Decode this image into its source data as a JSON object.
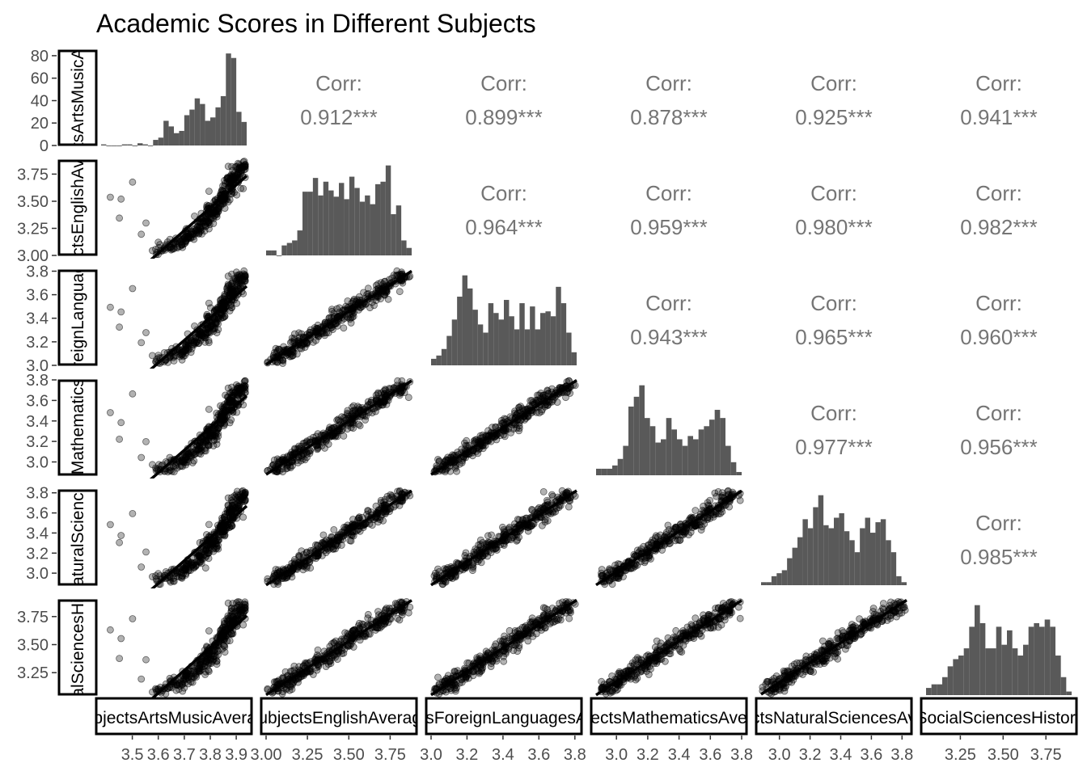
{
  "chart_data": {
    "type": "scatter-matrix",
    "title": "Academic Scores in Different Subjects",
    "variables": [
      {
        "label": "SubjectsArtsMusicAverage",
        "x_ticks": [
          3.5,
          3.6,
          3.7,
          3.8,
          3.9
        ],
        "x_tick_labels": [
          "3.5",
          "3.6",
          "3.7",
          "3.8",
          "3.9"
        ],
        "range": [
          3.38,
          3.94
        ],
        "y_ticks": [],
        "y_tick_labels": []
      },
      {
        "label": "SubjectsEnglishAverage",
        "x_ticks": [
          3.0,
          3.25,
          3.5,
          3.75
        ],
        "x_tick_labels": [
          "3.00",
          "3.25",
          "3.50",
          "3.75"
        ],
        "range": [
          3.0,
          3.88
        ],
        "y_ticks": [
          3.0,
          3.25,
          3.5,
          3.75
        ],
        "y_tick_labels": [
          "3.00",
          "3.25",
          "3.50",
          "3.75"
        ]
      },
      {
        "label": "SubjectsForeignLanguagesAverage",
        "x_ticks": [
          3.0,
          3.2,
          3.4,
          3.6,
          3.8
        ],
        "x_tick_labels": [
          "3.0",
          "3.2",
          "3.4",
          "3.6",
          "3.8"
        ],
        "range": [
          3.0,
          3.81
        ],
        "y_ticks": [
          3.0,
          3.2,
          3.4,
          3.6,
          3.8
        ],
        "y_tick_labels": [
          "3.0",
          "3.2",
          "3.4",
          "3.6",
          "3.8"
        ]
      },
      {
        "label": "SubjectsMathematicsAverage",
        "x_ticks": [
          3.0,
          3.2,
          3.4,
          3.6,
          3.8
        ],
        "x_tick_labels": [
          "3.0",
          "3.2",
          "3.4",
          "3.6",
          "3.8"
        ],
        "range": [
          2.87,
          3.8
        ],
        "y_ticks": [
          3.0,
          3.2,
          3.4,
          3.6,
          3.8
        ],
        "y_tick_labels": [
          "3.0",
          "3.2",
          "3.4",
          "3.6",
          "3.8"
        ]
      },
      {
        "label": "SubjectsNaturalSciencesAverage",
        "x_ticks": [
          3.0,
          3.2,
          3.4,
          3.6,
          3.8
        ],
        "x_tick_labels": [
          "3.0",
          "3.2",
          "3.4",
          "3.6",
          "3.8"
        ],
        "range": [
          2.88,
          3.83
        ],
        "y_ticks": [
          3.0,
          3.2,
          3.4,
          3.6,
          3.8
        ],
        "y_tick_labels": [
          "3.0",
          "3.2",
          "3.4",
          "3.6",
          "3.8"
        ]
      },
      {
        "label": "SubjectsSocialSciencesHistoryAverage",
        "x_ticks": [
          3.25,
          3.5,
          3.75
        ],
        "x_tick_labels": [
          "3.25",
          "3.50",
          "3.75"
        ],
        "range": [
          3.05,
          3.9
        ],
        "y_ticks": [
          3.25,
          3.5,
          3.75
        ],
        "y_tick_labels": [
          "3.25",
          "3.50",
          "3.75"
        ]
      }
    ],
    "count_axis": {
      "ticks": [
        0,
        20,
        40,
        60,
        80
      ],
      "tick_labels": [
        "0",
        "20",
        "40",
        "60",
        "80"
      ],
      "range": [
        0,
        85
      ]
    },
    "correlations": [
      {
        "row": 0,
        "col": 1,
        "label": "Corr:",
        "value": "0.912***"
      },
      {
        "row": 0,
        "col": 2,
        "label": "Corr:",
        "value": "0.899***"
      },
      {
        "row": 0,
        "col": 3,
        "label": "Corr:",
        "value": "0.878***"
      },
      {
        "row": 0,
        "col": 4,
        "label": "Corr:",
        "value": "0.925***"
      },
      {
        "row": 0,
        "col": 5,
        "label": "Corr:",
        "value": "0.941***"
      },
      {
        "row": 1,
        "col": 2,
        "label": "Corr:",
        "value": "0.964***"
      },
      {
        "row": 1,
        "col": 3,
        "label": "Corr:",
        "value": "0.959***"
      },
      {
        "row": 1,
        "col": 4,
        "label": "Corr:",
        "value": "0.980***"
      },
      {
        "row": 1,
        "col": 5,
        "label": "Corr:",
        "value": "0.982***"
      },
      {
        "row": 2,
        "col": 3,
        "label": "Corr:",
        "value": "0.943***"
      },
      {
        "row": 2,
        "col": 4,
        "label": "Corr:",
        "value": "0.965***"
      },
      {
        "row": 2,
        "col": 5,
        "label": "Corr:",
        "value": "0.960***"
      },
      {
        "row": 3,
        "col": 4,
        "label": "Corr:",
        "value": "0.977***"
      },
      {
        "row": 3,
        "col": 5,
        "label": "Corr:",
        "value": "0.956***"
      },
      {
        "row": 4,
        "col": 5,
        "label": "Corr:",
        "value": "0.985***"
      }
    ],
    "histograms": [
      [
        1,
        0,
        0,
        0,
        1,
        1,
        0,
        2,
        1,
        0,
        5,
        7,
        22,
        17,
        11,
        13,
        27,
        32,
        42,
        37,
        22,
        25,
        34,
        44,
        82,
        78,
        30,
        21
      ],
      [
        4,
        4,
        0,
        8,
        10,
        12,
        20,
        51,
        51,
        62,
        48,
        59,
        52,
        47,
        58,
        45,
        63,
        54,
        43,
        48,
        41,
        57,
        59,
        72,
        33,
        40,
        12,
        6
      ],
      [
        4,
        6,
        10,
        18,
        28,
        42,
        55,
        47,
        34,
        25,
        20,
        38,
        32,
        28,
        40,
        30,
        22,
        38,
        22,
        36,
        22,
        32,
        33,
        30,
        48,
        38,
        20,
        8
      ],
      [
        4,
        4,
        4,
        6,
        10,
        18,
        42,
        48,
        55,
        35,
        30,
        20,
        22,
        35,
        28,
        22,
        18,
        24,
        22,
        28,
        30,
        34,
        40,
        35,
        18,
        8,
        2
      ],
      [
        2,
        2,
        6,
        8,
        10,
        18,
        25,
        32,
        44,
        38,
        52,
        60,
        40,
        38,
        45,
        48,
        36,
        30,
        22,
        38,
        45,
        35,
        42,
        44,
        30,
        22,
        6,
        2
      ],
      [
        4,
        6,
        6,
        10,
        16,
        20,
        22,
        26,
        38,
        50,
        40,
        26,
        26,
        38,
        28,
        36,
        26,
        22,
        28,
        38,
        40,
        38,
        42,
        38,
        22,
        10,
        2
      ]
    ],
    "n_points": 360,
    "grid": false,
    "legend": "none"
  }
}
